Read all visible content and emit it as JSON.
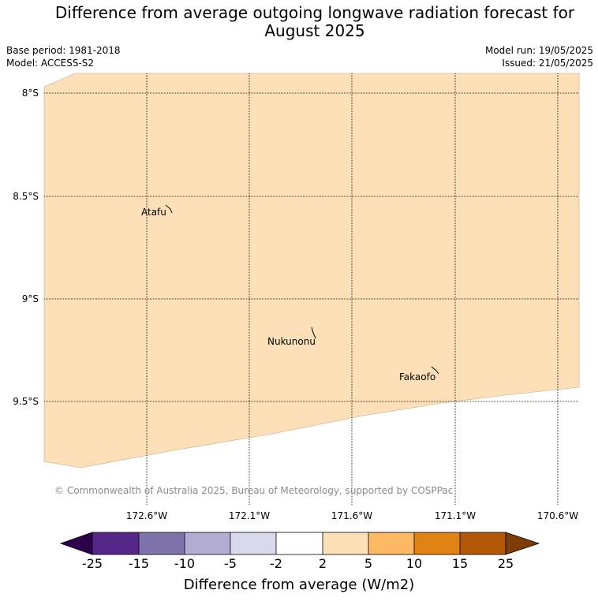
{
  "title": {
    "line1": "Difference from average outgoing longwave radiation forecast for",
    "line2": "August 2025"
  },
  "meta_left": {
    "base_period": "Base period: 1981-2018",
    "model": "Model: ACCESS-S2"
  },
  "meta_right": {
    "model_run": "Model run: 19/05/2025",
    "issued": "Issued: 21/05/2025"
  },
  "map": {
    "lat_labels": [
      "8°S",
      "8.5°S",
      "9°S",
      "9.5°S"
    ],
    "lon_labels": [
      "172.6°W",
      "172.1°W",
      "171.6°W",
      "171.1°W",
      "170.6°W"
    ],
    "fill_color": "#fde0b7",
    "fill_category": "2 to 5",
    "places": [
      "Atafu",
      "Nukunonu",
      "Fakaofo"
    ],
    "copyright": "© Commonwealth of Australia 2025, Bureau of Meteorology, supported by COSPPac"
  },
  "colorbar": {
    "label": "Difference from average (W/m2)",
    "ticks": [
      "-25",
      "-15",
      "-10",
      "-5",
      "-2",
      "2",
      "5",
      "10",
      "15",
      "25"
    ],
    "colors": [
      "#2d004b",
      "#542788",
      "#8073ac",
      "#b2abd2",
      "#d8daeb",
      "#ffffff",
      "#fee0b6",
      "#fdb863",
      "#e08214",
      "#b35806",
      "#7f3b08"
    ]
  }
}
